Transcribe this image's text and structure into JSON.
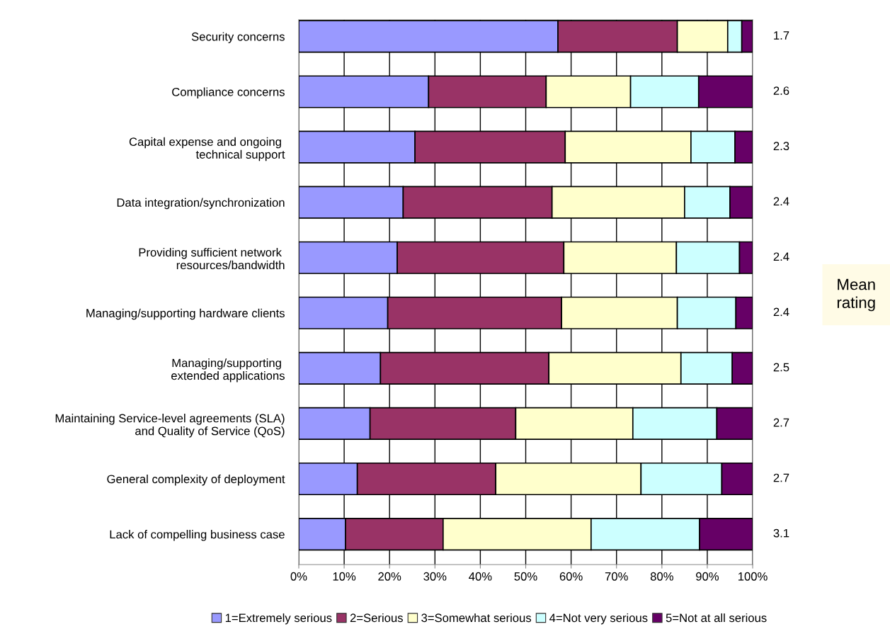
{
  "chart_data": {
    "type": "bar",
    "orientation": "horizontal",
    "stacked": true,
    "categories": [
      "Security concerns",
      "Compliance concerns",
      "Capital expense and ongoing \ntechnical support",
      "Data integration/synchronization",
      "Providing sufficient network \nresources/bandwidth",
      "Managing/supporting hardware clients",
      "Managing/supporting \nextended applications",
      "Maintaining Service-level agreements (SLA)\nand Quality of Service (QoS)",
      "General complexity of deployment",
      "Lack of compelling business case"
    ],
    "series": [
      {
        "name": "1=Extremely serious",
        "color": "#9999ff",
        "values": [
          57.1,
          28.6,
          25.6,
          23.0,
          21.7,
          19.6,
          18.0,
          15.7,
          12.9,
          10.3
        ]
      },
      {
        "name": "2=Serious",
        "color": "#993366",
        "values": [
          26.3,
          25.9,
          33.1,
          32.8,
          36.7,
          38.3,
          37.1,
          32.1,
          30.5,
          21.5
        ]
      },
      {
        "name": "3=Somewhat serious",
        "color": "#ffffcc",
        "values": [
          11.1,
          18.6,
          27.7,
          29.2,
          24.8,
          25.5,
          29.1,
          25.8,
          32.0,
          32.6
        ]
      },
      {
        "name": "4=Not very serious",
        "color": "#ccffff",
        "values": [
          3.1,
          15.0,
          9.7,
          10.0,
          13.9,
          12.9,
          11.3,
          18.5,
          17.8,
          23.9
        ]
      },
      {
        "name": "5=Not at all serious",
        "color": "#660066",
        "values": [
          2.4,
          11.9,
          3.9,
          5.0,
          2.9,
          3.7,
          4.5,
          7.9,
          6.8,
          11.7
        ]
      }
    ],
    "xlim": [
      0,
      100
    ],
    "xticks": [
      {
        "value": 0,
        "label": "0%"
      },
      {
        "value": 10,
        "label": "10%"
      },
      {
        "value": 20,
        "label": "20%"
      },
      {
        "value": 30,
        "label": "30%"
      },
      {
        "value": 40,
        "label": "40%"
      },
      {
        "value": 50,
        "label": "50%"
      },
      {
        "value": 60,
        "label": "60%"
      },
      {
        "value": 70,
        "label": "70%"
      },
      {
        "value": 80,
        "label": "80%"
      },
      {
        "value": 90,
        "label": "90%"
      },
      {
        "value": 100,
        "label": "100%"
      }
    ],
    "grid": "x",
    "legend": "bottom",
    "annotations": [
      "1.7",
      "2.6",
      "2.3",
      "2.4",
      "2.4",
      "2.4",
      "2.5",
      "2.7",
      "2.7",
      "3.1",
      "Mean\nrating"
    ]
  }
}
